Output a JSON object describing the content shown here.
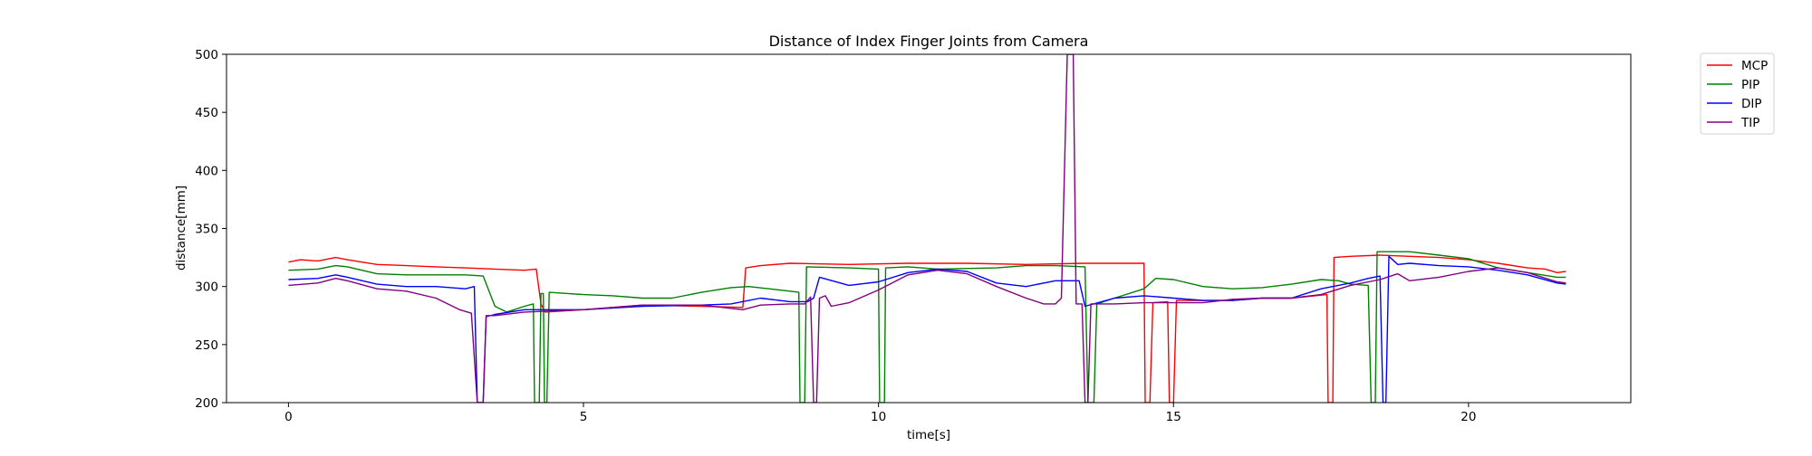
{
  "chart_data": {
    "type": "line",
    "title": "Distance of Index Finger Joints from Camera",
    "xlabel": "time[s]",
    "ylabel": "distance[mm]",
    "xlim": [
      -1.05,
      22.75
    ],
    "ylim": [
      200,
      500
    ],
    "xticks": [
      0,
      5,
      10,
      15,
      20
    ],
    "yticks": [
      200,
      250,
      300,
      350,
      400,
      450,
      500
    ],
    "grid": false,
    "legend_position": "outside upper right",
    "series": [
      {
        "name": "MCP",
        "color": "#ff0000",
        "points": [
          [
            0,
            321
          ],
          [
            0.2,
            323
          ],
          [
            0.5,
            322
          ],
          [
            0.8,
            325
          ],
          [
            1.0,
            323
          ],
          [
            1.5,
            319
          ],
          [
            2.0,
            318
          ],
          [
            2.5,
            317
          ],
          [
            3.0,
            316
          ],
          [
            3.5,
            315
          ],
          [
            4.0,
            314
          ],
          [
            4.2,
            315
          ],
          [
            4.28,
            285
          ],
          [
            4.35,
            278
          ],
          [
            5.0,
            280
          ],
          [
            6.0,
            284
          ],
          [
            7.0,
            283
          ],
          [
            7.7,
            282
          ],
          [
            7.75,
            316
          ],
          [
            8.0,
            318
          ],
          [
            8.5,
            320
          ],
          [
            9.5,
            319
          ],
          [
            10.5,
            320
          ],
          [
            11.5,
            320
          ],
          [
            12.5,
            319
          ],
          [
            13.5,
            320
          ],
          [
            14.5,
            320
          ],
          [
            14.52,
            200
          ],
          [
            14.6,
            200
          ],
          [
            14.65,
            286
          ],
          [
            14.9,
            287
          ],
          [
            14.93,
            200
          ],
          [
            15.0,
            200
          ],
          [
            15.05,
            288
          ],
          [
            15.5,
            288
          ],
          [
            16.0,
            288
          ],
          [
            16.5,
            290
          ],
          [
            17.0,
            290
          ],
          [
            17.6,
            293
          ],
          [
            17.62,
            200
          ],
          [
            17.7,
            200
          ],
          [
            17.72,
            325
          ],
          [
            18.0,
            326
          ],
          [
            18.5,
            327
          ],
          [
            19.0,
            326
          ],
          [
            19.5,
            325
          ],
          [
            20.0,
            323
          ],
          [
            20.5,
            320
          ],
          [
            21.0,
            316
          ],
          [
            21.3,
            315
          ],
          [
            21.5,
            312
          ],
          [
            21.65,
            313
          ]
        ]
      },
      {
        "name": "PIP",
        "color": "#008000",
        "points": [
          [
            0,
            314
          ],
          [
            0.5,
            315
          ],
          [
            0.8,
            318
          ],
          [
            1.0,
            317
          ],
          [
            1.5,
            311
          ],
          [
            2.0,
            310
          ],
          [
            2.5,
            310
          ],
          [
            3.0,
            310
          ],
          [
            3.3,
            309
          ],
          [
            3.5,
            283
          ],
          [
            3.7,
            278
          ],
          [
            4.0,
            283
          ],
          [
            4.15,
            285
          ],
          [
            4.17,
            200
          ],
          [
            4.25,
            200
          ],
          [
            4.28,
            294
          ],
          [
            4.32,
            294
          ],
          [
            4.34,
            200
          ],
          [
            4.38,
            200
          ],
          [
            4.42,
            295
          ],
          [
            5.0,
            293
          ],
          [
            5.5,
            292
          ],
          [
            6.0,
            290
          ],
          [
            6.5,
            290
          ],
          [
            7.0,
            295
          ],
          [
            7.5,
            299
          ],
          [
            7.8,
            300
          ],
          [
            8.5,
            296
          ],
          [
            8.65,
            295
          ],
          [
            8.67,
            200
          ],
          [
            8.75,
            200
          ],
          [
            8.78,
            317
          ],
          [
            9.5,
            316
          ],
          [
            10.0,
            315
          ],
          [
            10.02,
            200
          ],
          [
            10.1,
            200
          ],
          [
            10.12,
            316
          ],
          [
            10.5,
            317
          ],
          [
            11.0,
            315
          ],
          [
            12.0,
            316
          ],
          [
            12.5,
            318
          ],
          [
            13.0,
            318
          ],
          [
            13.5,
            317
          ],
          [
            13.55,
            200
          ],
          [
            13.65,
            200
          ],
          [
            13.7,
            285
          ],
          [
            14.0,
            290
          ],
          [
            14.5,
            298
          ],
          [
            14.7,
            307
          ],
          [
            15.0,
            306
          ],
          [
            15.5,
            300
          ],
          [
            16.0,
            298
          ],
          [
            16.5,
            299
          ],
          [
            17.0,
            302
          ],
          [
            17.5,
            306
          ],
          [
            17.8,
            305
          ],
          [
            18.0,
            302
          ],
          [
            18.3,
            301
          ],
          [
            18.35,
            200
          ],
          [
            18.42,
            200
          ],
          [
            18.45,
            330
          ],
          [
            19.0,
            330
          ],
          [
            19.5,
            327
          ],
          [
            20.0,
            324
          ],
          [
            20.5,
            316
          ],
          [
            21.0,
            312
          ],
          [
            21.5,
            308
          ],
          [
            21.65,
            308
          ]
        ]
      },
      {
        "name": "DIP",
        "color": "#0000ff",
        "points": [
          [
            0,
            306
          ],
          [
            0.5,
            307
          ],
          [
            0.8,
            310
          ],
          [
            1.0,
            308
          ],
          [
            1.5,
            302
          ],
          [
            2.0,
            300
          ],
          [
            2.5,
            300
          ],
          [
            3.0,
            298
          ],
          [
            3.15,
            300
          ],
          [
            3.2,
            200
          ],
          [
            3.3,
            200
          ],
          [
            3.35,
            274
          ],
          [
            3.5,
            276
          ],
          [
            4.0,
            280
          ],
          [
            5.0,
            280
          ],
          [
            6.0,
            283
          ],
          [
            7.0,
            284
          ],
          [
            7.5,
            285
          ],
          [
            8.0,
            290
          ],
          [
            8.5,
            287
          ],
          [
            8.8,
            287
          ],
          [
            8.9,
            290
          ],
          [
            9.0,
            308
          ],
          [
            9.5,
            301
          ],
          [
            10.0,
            304
          ],
          [
            10.5,
            312
          ],
          [
            11.0,
            315
          ],
          [
            11.5,
            313
          ],
          [
            12.0,
            303
          ],
          [
            12.5,
            300
          ],
          [
            13.0,
            305
          ],
          [
            13.4,
            305
          ],
          [
            13.5,
            283
          ],
          [
            14.0,
            290
          ],
          [
            14.5,
            292
          ],
          [
            15.0,
            290
          ],
          [
            15.5,
            288
          ],
          [
            16.0,
            288
          ],
          [
            16.5,
            290
          ],
          [
            17.0,
            290
          ],
          [
            17.5,
            298
          ],
          [
            18.0,
            303
          ],
          [
            18.3,
            307
          ],
          [
            18.5,
            309
          ],
          [
            18.55,
            200
          ],
          [
            18.6,
            200
          ],
          [
            18.65,
            326
          ],
          [
            18.8,
            319
          ],
          [
            19.0,
            320
          ],
          [
            19.5,
            318
          ],
          [
            20.0,
            317
          ],
          [
            20.5,
            314
          ],
          [
            21.0,
            310
          ],
          [
            21.5,
            303
          ],
          [
            21.65,
            302
          ]
        ]
      },
      {
        "name": "TIP",
        "color": "#800080",
        "points": [
          [
            0,
            301
          ],
          [
            0.5,
            303
          ],
          [
            0.8,
            307
          ],
          [
            1.0,
            305
          ],
          [
            1.5,
            298
          ],
          [
            2.0,
            296
          ],
          [
            2.5,
            290
          ],
          [
            2.9,
            280
          ],
          [
            3.1,
            277
          ],
          [
            3.2,
            200
          ],
          [
            3.3,
            200
          ],
          [
            3.35,
            275
          ],
          [
            3.5,
            275
          ],
          [
            4.0,
            278
          ],
          [
            5.0,
            280
          ],
          [
            6.0,
            284
          ],
          [
            7.0,
            284
          ],
          [
            7.7,
            280
          ],
          [
            8.0,
            284
          ],
          [
            8.5,
            285
          ],
          [
            8.75,
            285
          ],
          [
            8.85,
            291
          ],
          [
            8.9,
            200
          ],
          [
            8.95,
            200
          ],
          [
            9.0,
            290
          ],
          [
            9.1,
            292
          ],
          [
            9.2,
            283
          ],
          [
            9.5,
            286
          ],
          [
            10.0,
            297
          ],
          [
            10.5,
            310
          ],
          [
            11.0,
            314
          ],
          [
            11.5,
            311
          ],
          [
            12.0,
            300
          ],
          [
            12.5,
            290
          ],
          [
            12.8,
            285
          ],
          [
            13.0,
            285
          ],
          [
            13.1,
            290
          ],
          [
            13.2,
            500
          ],
          [
            13.3,
            500
          ],
          [
            13.35,
            285
          ],
          [
            13.45,
            285
          ],
          [
            13.5,
            200
          ],
          [
            13.55,
            200
          ],
          [
            13.6,
            285
          ],
          [
            14.0,
            285
          ],
          [
            14.5,
            286
          ],
          [
            15.0,
            286
          ],
          [
            15.5,
            286
          ],
          [
            16.0,
            289
          ],
          [
            16.5,
            290
          ],
          [
            17.0,
            290
          ],
          [
            17.5,
            293
          ],
          [
            18.0,
            301
          ],
          [
            18.5,
            306
          ],
          [
            18.8,
            311
          ],
          [
            19.0,
            305
          ],
          [
            19.5,
            308
          ],
          [
            20.0,
            313
          ],
          [
            20.5,
            316
          ],
          [
            21.0,
            312
          ],
          [
            21.5,
            304
          ],
          [
            21.65,
            303
          ]
        ]
      }
    ]
  }
}
